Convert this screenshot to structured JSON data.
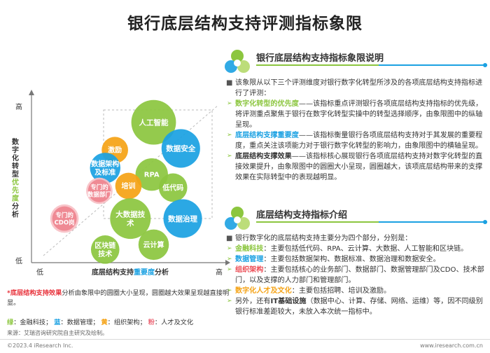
{
  "page": {
    "title": "银行底层结构支持评测指标象限"
  },
  "chart_data": {
    "type": "scatter",
    "y_axis": {
      "label_parts": [
        "数字化转型",
        "优先度",
        "分析"
      ],
      "high": "高",
      "low": "低"
    },
    "x_axis": {
      "label_parts": [
        "底层结构支持",
        "重要度",
        "分析"
      ],
      "high": "高",
      "low": "低"
    },
    "x_range": [
      0,
      100
    ],
    "y_range": [
      0,
      100
    ],
    "bubbles": [
      {
        "label": "人工智能",
        "category": "green",
        "x": 63,
        "y": 86,
        "size": 22
      },
      {
        "label": "数据安全",
        "category": "blue",
        "x": 77,
        "y": 70,
        "size": 19
      },
      {
        "label": "激励",
        "category": "orange",
        "x": 43,
        "y": 69,
        "size": 13
      },
      {
        "label": "数据架构及标准",
        "category": "blue",
        "x": 38,
        "y": 58,
        "size": 15
      },
      {
        "label": "RPA",
        "category": "green",
        "x": 62,
        "y": 54,
        "size": 16
      },
      {
        "label": "培训",
        "category": "orange",
        "x": 50,
        "y": 47,
        "size": 13
      },
      {
        "label": "低代码",
        "category": "green",
        "x": 73,
        "y": 46,
        "size": 14
      },
      {
        "label": "专门的数据部门",
        "category": "pink",
        "x": 35,
        "y": 44,
        "size": 13
      },
      {
        "label": "大数据技术",
        "category": "green",
        "x": 51,
        "y": 27,
        "size": 20
      },
      {
        "label": "数据治理",
        "category": "blue",
        "x": 78,
        "y": 27,
        "size": 19
      },
      {
        "label": "专门的CDO岗",
        "category": "pink",
        "x": 17,
        "y": 27,
        "size": 14
      },
      {
        "label": "云计算",
        "category": "green",
        "x": 63,
        "y": 11,
        "size": 15
      },
      {
        "label": "区块链技术",
        "category": "green",
        "x": 38,
        "y": 8,
        "size": 14
      }
    ],
    "colors": {
      "green": "#8cc63f",
      "blue": "#1ba1e2",
      "orange": "#f5a316",
      "pink": "#f4a7ad"
    }
  },
  "chart_notes": {
    "note_lead": "*",
    "note_em": "底层结构支持效果",
    "note_rest": "分析由象限中的圆圈大小呈现，圆圈越大效果呈现越直接明显。",
    "legend": [
      {
        "key": "绿",
        "text": "金融科技",
        "cls": "lg-green"
      },
      {
        "key": "蓝",
        "text": "数据管理",
        "cls": "lg-blue"
      },
      {
        "key": "黄",
        "text": "组织架构",
        "cls": "lg-orange"
      },
      {
        "key": "粉",
        "text": "人才及文化",
        "cls": "lg-pink"
      }
    ],
    "legend_colon": "：",
    "legend_sep": "；  "
  },
  "footer": {
    "source": "来源：艾瑞咨询研究院自主研究及绘制。",
    "copyright": "©2023.4 iResearch Inc.",
    "website": "www.iresearch.com.cn"
  },
  "section1": {
    "title": "银行底层结构支持指标象限说明",
    "intro": "该象限从以下三个评测维度对银行数字化转型所涉及的各项底层结构支持指标进行了评测：",
    "items": [
      {
        "head": "数字化转型的优先度",
        "cls": "hl-green",
        "text": "——该指标重点评测银行各项底层结构支持指标的优先级，将评测重点聚焦于银行在数字化转型实操中的转型选择顺序，由象限图中的纵轴呈现。"
      },
      {
        "head": "底层结构支撑重要度",
        "cls": "hl-blue",
        "text": "——该指标衡量银行各项底层结构支持对于其发展的重要程度，重点关注该项能力对于银行数字化转型的影响力，由象限图中的横轴呈现。"
      },
      {
        "head": "底层结构支撑效果",
        "cls": "bold-dark",
        "text": "——该指标核心展现银行各项底层结构支持对数字化转型的直接效果提升，由象限图中的圆圈大小呈现，圆圈越大，该项底层结构带来的支撑效果在实际转型中的表现越明显。"
      }
    ]
  },
  "section2": {
    "title": "底层结构支持指标介绍",
    "intro": "银行数字化的底层结构支持主要分为四个部分，分别是：",
    "items": [
      {
        "head": "金融科技",
        "cls": "hl-green",
        "text": "：主要包括低代码、RPA、云计算、大数据、人工智能和区块链。"
      },
      {
        "head": "数据管理",
        "cls": "hl-blue",
        "text": "：主要包括数据架构、数据标准、数据治理和数据安全。"
      },
      {
        "head": "组织架构",
        "cls": "hl-red",
        "text": "：主要包括核心的业务部门、数据部门、数据管理部门及CDO、技术部门，以及支撑的人力部门和管理部门。"
      },
      {
        "head": "数字化人才及文化",
        "cls": "hl-orange",
        "text": "：主要包括招聘、培训及激励。"
      }
    ],
    "last_pre": "另外，还有",
    "last_em": "IT基础设施",
    "last_post": "（数据中心、计算、存储、网络、运维）等，因不同级别银行标准差距较大，未放入本次统一指标中。"
  }
}
